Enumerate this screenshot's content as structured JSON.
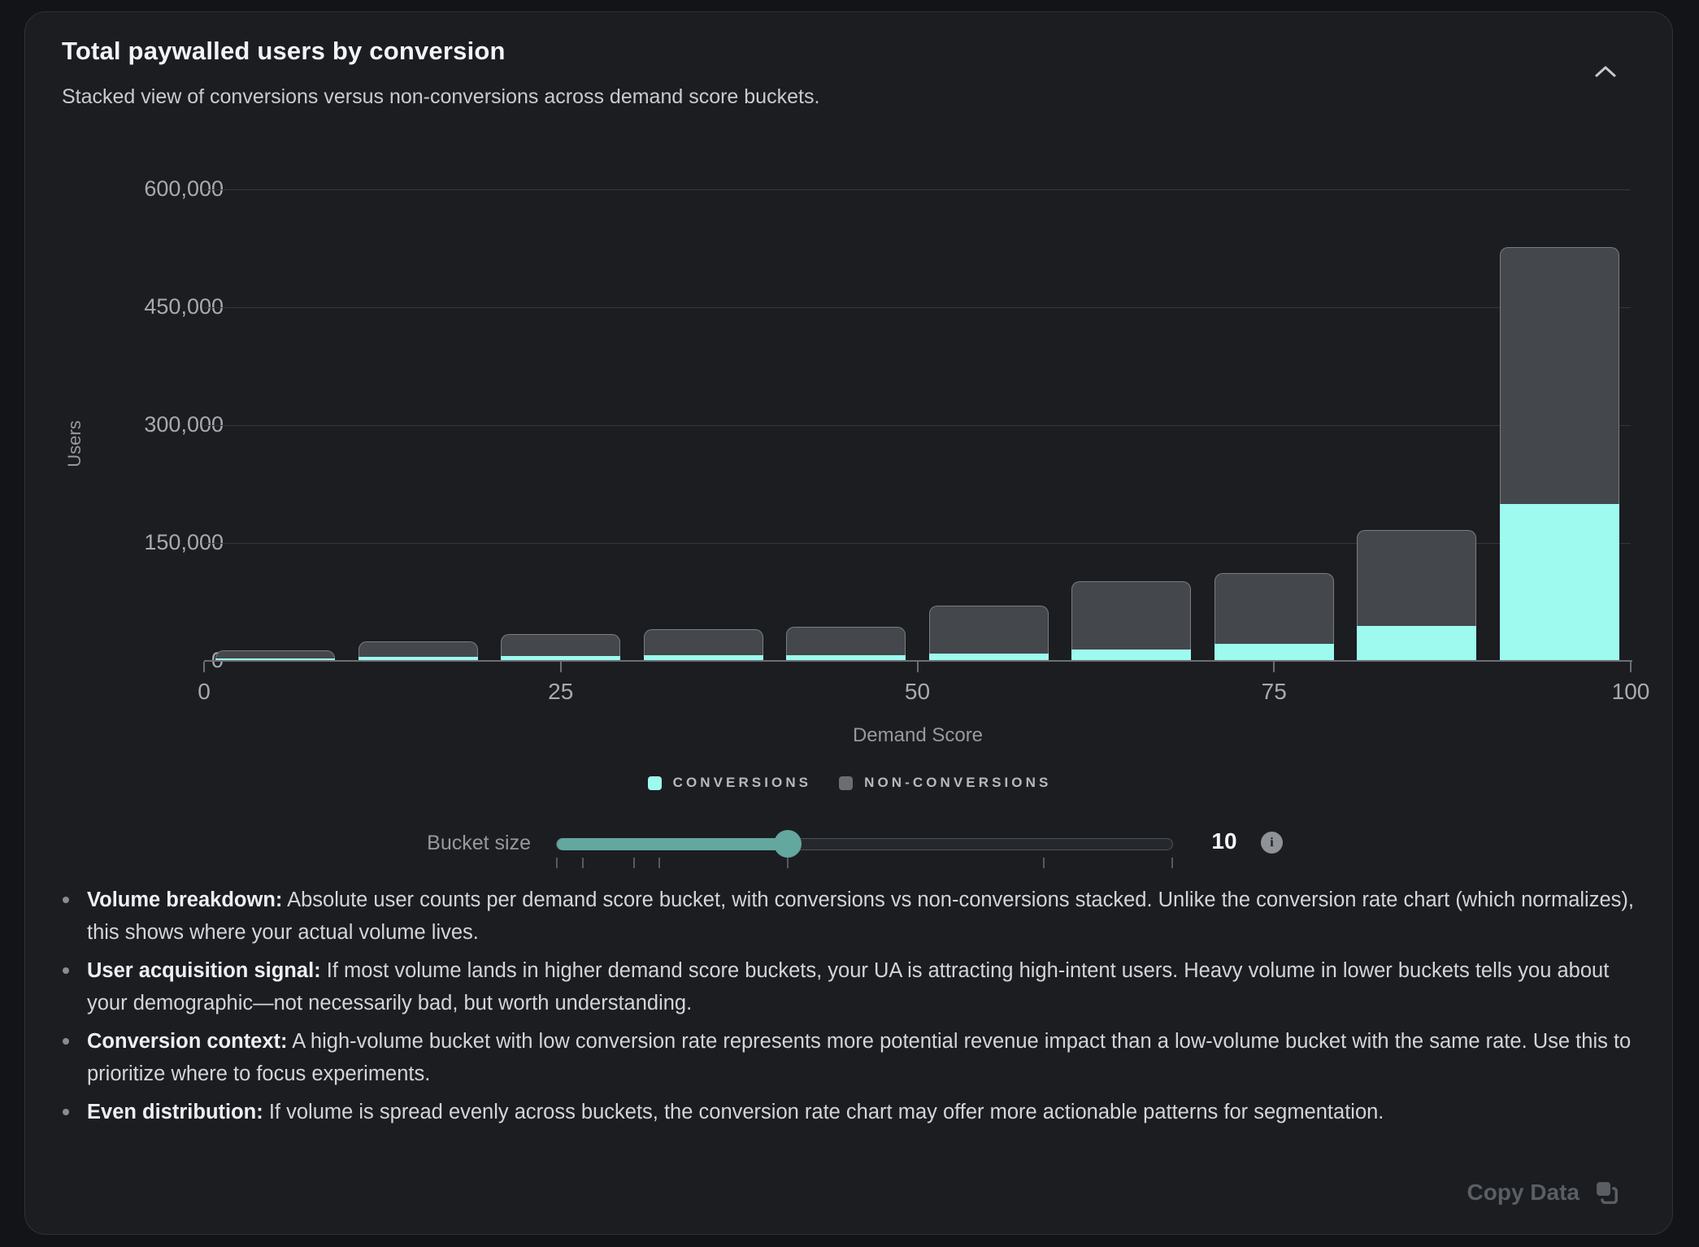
{
  "card": {
    "title": "Total paywalled users by conversion",
    "subtitle": "Stacked view of conversions versus non-conversions across demand score buckets.",
    "copy_button_label": "Copy Data"
  },
  "chart_data": {
    "type": "bar",
    "stacked": true,
    "categories": [
      "0-10",
      "10-20",
      "20-30",
      "30-40",
      "40-50",
      "50-60",
      "60-70",
      "70-80",
      "80-90",
      "90-100"
    ],
    "series": [
      {
        "name": "Conversions",
        "color": "#9efaee",
        "values": [
          3000,
          5000,
          6000,
          7000,
          7000,
          9000,
          15000,
          22000,
          45000,
          200000
        ]
      },
      {
        "name": "Non-conversions",
        "color": "#44474c",
        "values": [
          10500,
          20000,
          28000,
          33000,
          36000,
          61000,
          86000,
          90000,
          122000,
          327000
        ]
      }
    ],
    "xlabel": "Demand Score",
    "ylabel": "Users",
    "x_ticks": [
      0,
      25,
      50,
      75,
      100
    ],
    "y_tick_values": [
      0,
      150000,
      300000,
      450000,
      600000
    ],
    "y_tick_labels": [
      "0",
      "150,000",
      "300,000",
      "450,000",
      "600,000"
    ],
    "xlim": [
      0,
      100
    ],
    "ylim": [
      0,
      600000
    ],
    "grid": true,
    "legend_position": "bottom"
  },
  "legend": {
    "items": [
      {
        "label": "CONVERSIONS",
        "color": "#9efaee"
      },
      {
        "label": "NON-CONVERSIONS",
        "color": "#6a6e73"
      }
    ]
  },
  "slider": {
    "label": "Bucket size",
    "value": 10,
    "min": 1,
    "max": 25,
    "tick_values": [
      1,
      2,
      4,
      5,
      10,
      20,
      25
    ],
    "info_icon": "i",
    "accent_color": "#63a79f"
  },
  "notes": [
    {
      "label": "Volume breakdown:",
      "text": "Absolute user counts per demand score bucket, with conversions vs non-conversions stacked. Unlike the conversion rate chart (which normalizes), this shows where your actual volume lives."
    },
    {
      "label": "User acquisition signal:",
      "text": "If most volume lands in higher demand score buckets, your UA is attracting high-intent users. Heavy volume in lower buckets tells you about your demographic—not necessarily bad, but worth understanding."
    },
    {
      "label": "Conversion context:",
      "text": "A high-volume bucket with low conversion rate represents more potential revenue impact than a low-volume bucket with the same rate. Use this to prioritize where to focus experiments."
    },
    {
      "label": "Even distribution:",
      "text": "If volume is spread evenly across buckets, the conversion rate chart may offer more actionable patterns for segmentation."
    }
  ],
  "colors": {
    "page_bg": "#121418",
    "card_bg": "#1b1d21",
    "conversions": "#9efaee",
    "non_conversions": "#44474c",
    "accent_teal": "#63a79f"
  }
}
